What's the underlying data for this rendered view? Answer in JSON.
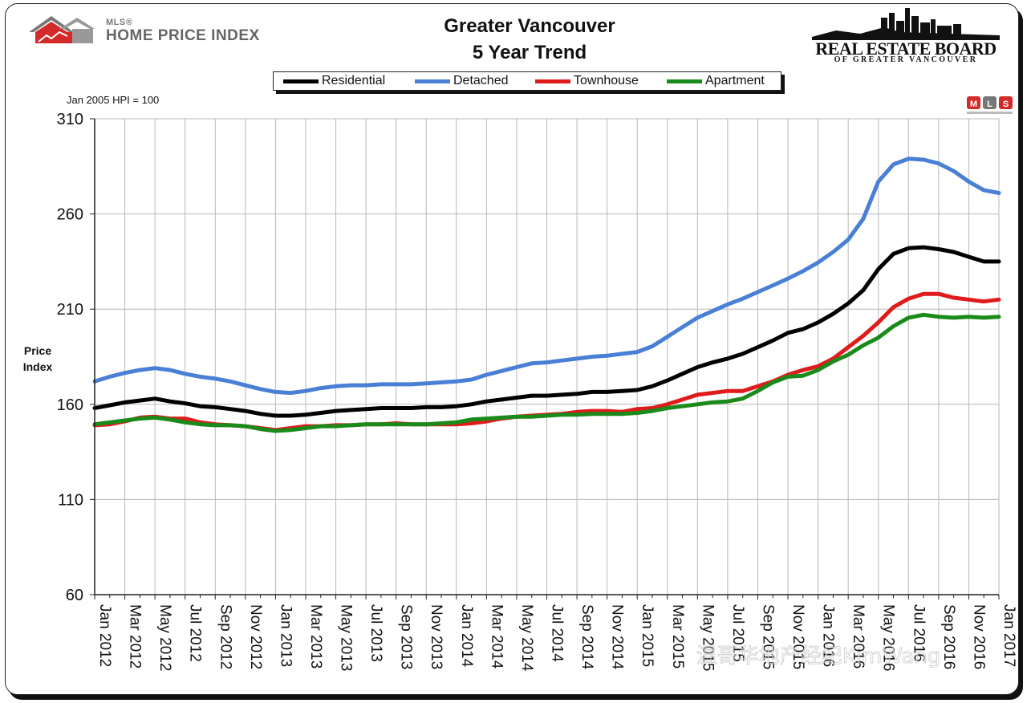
{
  "header": {
    "hpi_logo_small": "MLS®",
    "hpi_logo_text": "HOME PRICE INDEX",
    "title_line1": "Greater Vancouver",
    "title_line2": "5 Year Trend",
    "reb_name": "REAL ESTATE BOARD",
    "reb_sub": "OF GREATER VANCOUVER",
    "mls_badge": [
      "M",
      "L",
      "S"
    ]
  },
  "baseline_note": "Jan 2005 HPI = 100",
  "colors": {
    "Residential": "#000000",
    "Detached": "#4a7fd6",
    "Townhouse": "#e01b1b",
    "Apartment": "#1a8a1a",
    "grid": "#b8b8b8",
    "logo_red": "#d42a2a",
    "logo_gray": "#777777"
  },
  "chart_data": {
    "type": "line",
    "title": "Greater Vancouver 5 Year Trend",
    "ylabel": "Price Index",
    "xlabel": "",
    "ylim": [
      60,
      310
    ],
    "yticks": [
      60,
      110,
      160,
      210,
      260,
      310
    ],
    "grid": true,
    "legend_position": "top",
    "x": [
      "Jan 2012",
      "Feb 2012",
      "Mar 2012",
      "Apr 2012",
      "May 2012",
      "Jun 2012",
      "Jul 2012",
      "Aug 2012",
      "Sep 2012",
      "Oct 2012",
      "Nov 2012",
      "Dec 2012",
      "Jan 2013",
      "Feb 2013",
      "Mar 2013",
      "Apr 2013",
      "May 2013",
      "Jun 2013",
      "Jul 2013",
      "Aug 2013",
      "Sep 2013",
      "Oct 2013",
      "Nov 2013",
      "Dec 2013",
      "Jan 2014",
      "Feb 2014",
      "Mar 2014",
      "Apr 2014",
      "May 2014",
      "Jun 2014",
      "Jul 2014",
      "Aug 2014",
      "Sep 2014",
      "Oct 2014",
      "Nov 2014",
      "Dec 2014",
      "Jan 2015",
      "Feb 2015",
      "Mar 2015",
      "Apr 2015",
      "May 2015",
      "Jun 2015",
      "Jul 2015",
      "Aug 2015",
      "Sep 2015",
      "Oct 2015",
      "Nov 2015",
      "Dec 2015",
      "Jan 2016",
      "Feb 2016",
      "Mar 2016",
      "Apr 2016",
      "May 2016",
      "Jun 2016",
      "Jul 2016",
      "Aug 2016",
      "Sep 2016",
      "Oct 2016",
      "Nov 2016",
      "Dec 2016",
      "Jan 2017"
    ],
    "xtick_labels": [
      "Jan 2012",
      "Mar 2012",
      "May 2012",
      "Jul 2012",
      "Sep 2012",
      "Nov 2012",
      "Jan 2013",
      "Mar 2013",
      "May 2013",
      "Jul 2013",
      "Sep 2013",
      "Nov 2013",
      "Jan 2014",
      "Mar 2014",
      "May 2014",
      "Jul 2014",
      "Sep 2014",
      "Nov 2014",
      "Jan 2015",
      "Mar 2015",
      "May 2015",
      "Jul 2015",
      "Sep 2015",
      "Nov 2015",
      "Jan 2016",
      "Mar 2016",
      "May 2016",
      "Jul 2016",
      "Sep 2016",
      "Nov 2016",
      "Jan 2017"
    ],
    "series": [
      {
        "name": "Detached",
        "values": [
          172,
          174.5,
          176.5,
          178,
          179,
          178,
          176,
          174.5,
          173.5,
          172,
          170,
          168,
          166.5,
          166,
          167,
          168.5,
          169.5,
          170,
          170,
          170.5,
          170.5,
          170.5,
          171,
          171.5,
          172,
          173,
          175.5,
          177.5,
          179.5,
          181.5,
          182,
          183,
          184,
          185,
          185.5,
          186.5,
          187.5,
          190.5,
          195.5,
          200.5,
          205.5,
          209,
          212.5,
          215.5,
          219,
          222.5,
          226,
          230,
          234.5,
          240,
          246.5,
          257.5,
          277,
          286,
          289,
          288.5,
          286.5,
          282.5,
          277,
          272.5,
          271
        ]
      },
      {
        "name": "Residential",
        "values": [
          158,
          159.5,
          161,
          162,
          163,
          161.5,
          160.5,
          159,
          158.5,
          157.5,
          156.5,
          155,
          154,
          154,
          154.5,
          155.5,
          156.5,
          157,
          157.5,
          158,
          158,
          158,
          158.5,
          158.5,
          159,
          160,
          161.5,
          162.5,
          163.5,
          164.5,
          164.5,
          165,
          165.5,
          166.5,
          166.5,
          167,
          167.5,
          169.5,
          172.5,
          176,
          179.5,
          182,
          184,
          186.5,
          190,
          193.5,
          197.5,
          199.5,
          203,
          207.5,
          213,
          220,
          231,
          239,
          242,
          242.5,
          241.5,
          240,
          237.5,
          235,
          235
        ]
      },
      {
        "name": "Townhouse",
        "values": [
          149,
          149.5,
          151,
          153,
          153.5,
          152.5,
          152.5,
          150.5,
          149.5,
          149,
          148.5,
          147.5,
          146.5,
          147.5,
          148.5,
          148.5,
          149,
          149,
          149.5,
          149.5,
          150,
          149.5,
          149.5,
          149.5,
          149.5,
          150,
          151,
          152.5,
          153.5,
          154,
          154.5,
          155,
          156,
          156.5,
          156.5,
          156,
          157.5,
          158,
          160,
          162.5,
          165,
          166,
          167,
          167,
          169.5,
          172,
          175.5,
          178,
          180,
          184,
          190,
          196,
          203,
          211,
          215.5,
          218,
          218,
          216,
          215,
          214,
          215
        ]
      },
      {
        "name": "Apartment",
        "values": [
          149.5,
          150.5,
          151.5,
          152.5,
          153,
          152,
          150.5,
          149.5,
          149,
          149,
          148.5,
          147,
          146,
          146.5,
          147.5,
          148.5,
          148.5,
          149,
          149.5,
          149.5,
          149.5,
          149.5,
          149.5,
          150,
          150.5,
          152,
          152.5,
          153,
          153.5,
          153.5,
          154,
          154.5,
          154.5,
          155,
          155,
          155,
          155.5,
          156.5,
          158,
          159,
          160,
          161,
          161.5,
          163,
          167,
          171.5,
          174.5,
          175,
          178,
          182.5,
          186,
          191,
          195,
          201,
          205.5,
          207,
          206,
          205.5,
          206,
          205.5,
          206
        ]
      }
    ]
  },
  "watermark": "温哥华地产经纪KimWang"
}
